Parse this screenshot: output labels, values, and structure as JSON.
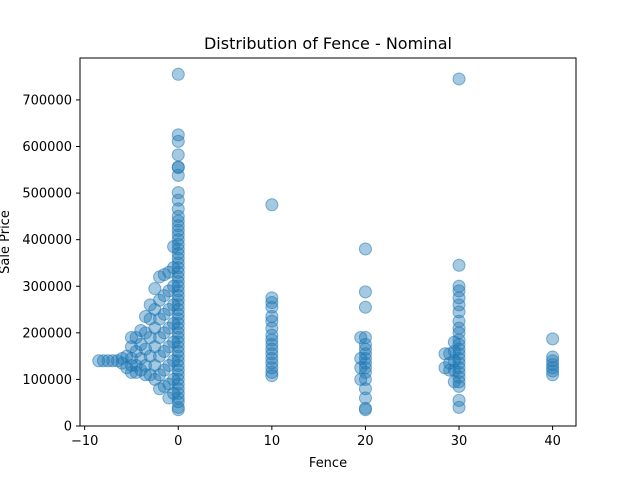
{
  "chart_data": {
    "type": "scatter",
    "title": "Distribution of Fence - Nominal",
    "xlabel": "Fence",
    "ylabel": "Sale Price",
    "xlim": [
      -10.5,
      42.5
    ],
    "ylim": [
      0,
      790000
    ],
    "x_ticks": [
      -10,
      0,
      10,
      20,
      30,
      40
    ],
    "y_ticks": [
      0,
      100000,
      200000,
      300000,
      400000,
      500000,
      600000,
      700000
    ],
    "x_tick_labels": [
      "−10",
      "0",
      "10",
      "20",
      "30",
      "40"
    ],
    "y_tick_labels": [
      "0",
      "100000",
      "200000",
      "300000",
      "400000",
      "500000",
      "600000",
      "700000"
    ],
    "grid": false,
    "marker_color": "#1f77b4",
    "marker_opacity": 0.4,
    "points": [
      [
        0,
        755000
      ],
      [
        0,
        625000
      ],
      [
        0,
        611000
      ],
      [
        0,
        582000
      ],
      [
        0,
        556000
      ],
      [
        0,
        555000
      ],
      [
        0,
        538000
      ],
      [
        0,
        501000
      ],
      [
        0,
        485000
      ],
      [
        0,
        466000
      ],
      [
        0,
        450000
      ],
      [
        0,
        440000
      ],
      [
        0,
        430000
      ],
      [
        0,
        420000
      ],
      [
        0,
        410000
      ],
      [
        0,
        400000
      ],
      [
        0,
        390000
      ],
      [
        0,
        380000
      ],
      [
        0,
        370000
      ],
      [
        0,
        360000
      ],
      [
        0,
        350000
      ],
      [
        0,
        340000
      ],
      [
        0,
        330000
      ],
      [
        0,
        320000
      ],
      [
        0,
        310000
      ],
      [
        0,
        300000
      ],
      [
        0,
        290000
      ],
      [
        0,
        280000
      ],
      [
        0,
        270000
      ],
      [
        0,
        260000
      ],
      [
        0,
        250000
      ],
      [
        0,
        240000
      ],
      [
        0,
        230000
      ],
      [
        0,
        220000
      ],
      [
        0,
        210000
      ],
      [
        0,
        200000
      ],
      [
        0,
        190000
      ],
      [
        0,
        180000
      ],
      [
        0,
        170000
      ],
      [
        0,
        160000
      ],
      [
        0,
        150000
      ],
      [
        0,
        140000
      ],
      [
        0,
        130000
      ],
      [
        0,
        120000
      ],
      [
        0,
        110000
      ],
      [
        0,
        100000
      ],
      [
        0,
        90000
      ],
      [
        0,
        80000
      ],
      [
        0,
        70000
      ],
      [
        0,
        60000
      ],
      [
        0,
        52000
      ],
      [
        0,
        40000
      ],
      [
        0,
        35000
      ],
      [
        -0.5,
        385000
      ],
      [
        -0.5,
        340000
      ],
      [
        -0.5,
        300000
      ],
      [
        -0.5,
        260000
      ],
      [
        -0.5,
        220000
      ],
      [
        -0.5,
        180000
      ],
      [
        -0.5,
        140000
      ],
      [
        -0.5,
        100000
      ],
      [
        -0.5,
        70000
      ],
      [
        -1,
        330000
      ],
      [
        -1,
        290000
      ],
      [
        -1,
        250000
      ],
      [
        -1,
        210000
      ],
      [
        -1,
        170000
      ],
      [
        -1,
        130000
      ],
      [
        -1,
        90000
      ],
      [
        -1,
        60000
      ],
      [
        -1.5,
        325000
      ],
      [
        -1.5,
        280000
      ],
      [
        -1.5,
        240000
      ],
      [
        -1.5,
        200000
      ],
      [
        -1.5,
        160000
      ],
      [
        -1.5,
        120000
      ],
      [
        -1.5,
        85000
      ],
      [
        -2,
        320000
      ],
      [
        -2,
        270000
      ],
      [
        -2,
        230000
      ],
      [
        -2,
        190000
      ],
      [
        -2,
        150000
      ],
      [
        -2,
        110000
      ],
      [
        -2,
        80000
      ],
      [
        -2.5,
        295000
      ],
      [
        -2.5,
        250000
      ],
      [
        -2.5,
        210000
      ],
      [
        -2.5,
        170000
      ],
      [
        -2.5,
        130000
      ],
      [
        -2.5,
        100000
      ],
      [
        -3,
        260000
      ],
      [
        -3,
        230000
      ],
      [
        -3,
        190000
      ],
      [
        -3,
        150000
      ],
      [
        -3,
        110000
      ],
      [
        -3.5,
        235000
      ],
      [
        -3.5,
        200000
      ],
      [
        -3.5,
        165000
      ],
      [
        -3.5,
        130000
      ],
      [
        -3.5,
        110000
      ],
      [
        -4,
        205000
      ],
      [
        -4,
        175000
      ],
      [
        -4,
        145000
      ],
      [
        -4,
        120000
      ],
      [
        -4.5,
        190000
      ],
      [
        -4.5,
        160000
      ],
      [
        -4.5,
        130000
      ],
      [
        -4.5,
        115000
      ],
      [
        -5,
        190000
      ],
      [
        -5,
        170000
      ],
      [
        -5,
        145000
      ],
      [
        -5,
        130000
      ],
      [
        -5,
        115000
      ],
      [
        -5.5,
        150000
      ],
      [
        -5.5,
        125000
      ],
      [
        -6,
        145000
      ],
      [
        -6,
        135000
      ],
      [
        -6.5,
        140000
      ],
      [
        -7,
        140000
      ],
      [
        -7.5,
        140000
      ],
      [
        -8,
        140000
      ],
      [
        -8.5,
        140000
      ],
      [
        10,
        475000
      ],
      [
        10,
        275000
      ],
      [
        10,
        265000
      ],
      [
        10,
        255000
      ],
      [
        10,
        235000
      ],
      [
        10,
        225000
      ],
      [
        10,
        210000
      ],
      [
        10,
        195000
      ],
      [
        10,
        185000
      ],
      [
        10,
        175000
      ],
      [
        10,
        165000
      ],
      [
        10,
        155000
      ],
      [
        10,
        145000
      ],
      [
        10,
        135000
      ],
      [
        10,
        125000
      ],
      [
        10,
        115000
      ],
      [
        10,
        108000
      ],
      [
        20,
        380000
      ],
      [
        20,
        288000
      ],
      [
        20,
        255000
      ],
      [
        20,
        190000
      ],
      [
        20,
        175000
      ],
      [
        20,
        165000
      ],
      [
        20,
        155000
      ],
      [
        20,
        145000
      ],
      [
        20,
        135000
      ],
      [
        20,
        125000
      ],
      [
        20,
        115000
      ],
      [
        20,
        100000
      ],
      [
        20,
        80000
      ],
      [
        20,
        60000
      ],
      [
        20,
        38000
      ],
      [
        20,
        35000
      ],
      [
        19.5,
        145000
      ],
      [
        19.5,
        125000
      ],
      [
        19.5,
        100000
      ],
      [
        19.5,
        190000
      ],
      [
        30,
        745000
      ],
      [
        30,
        345000
      ],
      [
        30,
        300000
      ],
      [
        30,
        290000
      ],
      [
        30,
        275000
      ],
      [
        30,
        260000
      ],
      [
        30,
        245000
      ],
      [
        30,
        225000
      ],
      [
        30,
        210000
      ],
      [
        30,
        200000
      ],
      [
        30,
        185000
      ],
      [
        30,
        175000
      ],
      [
        30,
        165000
      ],
      [
        30,
        155000
      ],
      [
        30,
        145000
      ],
      [
        30,
        135000
      ],
      [
        30,
        125000
      ],
      [
        30,
        115000
      ],
      [
        30,
        105000
      ],
      [
        30,
        95000
      ],
      [
        30,
        85000
      ],
      [
        30,
        55000
      ],
      [
        30,
        40000
      ],
      [
        29.5,
        180000
      ],
      [
        29.5,
        160000
      ],
      [
        29.5,
        140000
      ],
      [
        29.5,
        120000
      ],
      [
        29.5,
        95000
      ],
      [
        29,
        155000
      ],
      [
        29,
        135000
      ],
      [
        29,
        120000
      ],
      [
        28.5,
        125000
      ],
      [
        28.5,
        155000
      ],
      [
        40,
        187000
      ],
      [
        40,
        148000
      ],
      [
        40,
        140000
      ],
      [
        40,
        132000
      ],
      [
        40,
        125000
      ],
      [
        40,
        118000
      ],
      [
        40,
        110000
      ]
    ]
  }
}
